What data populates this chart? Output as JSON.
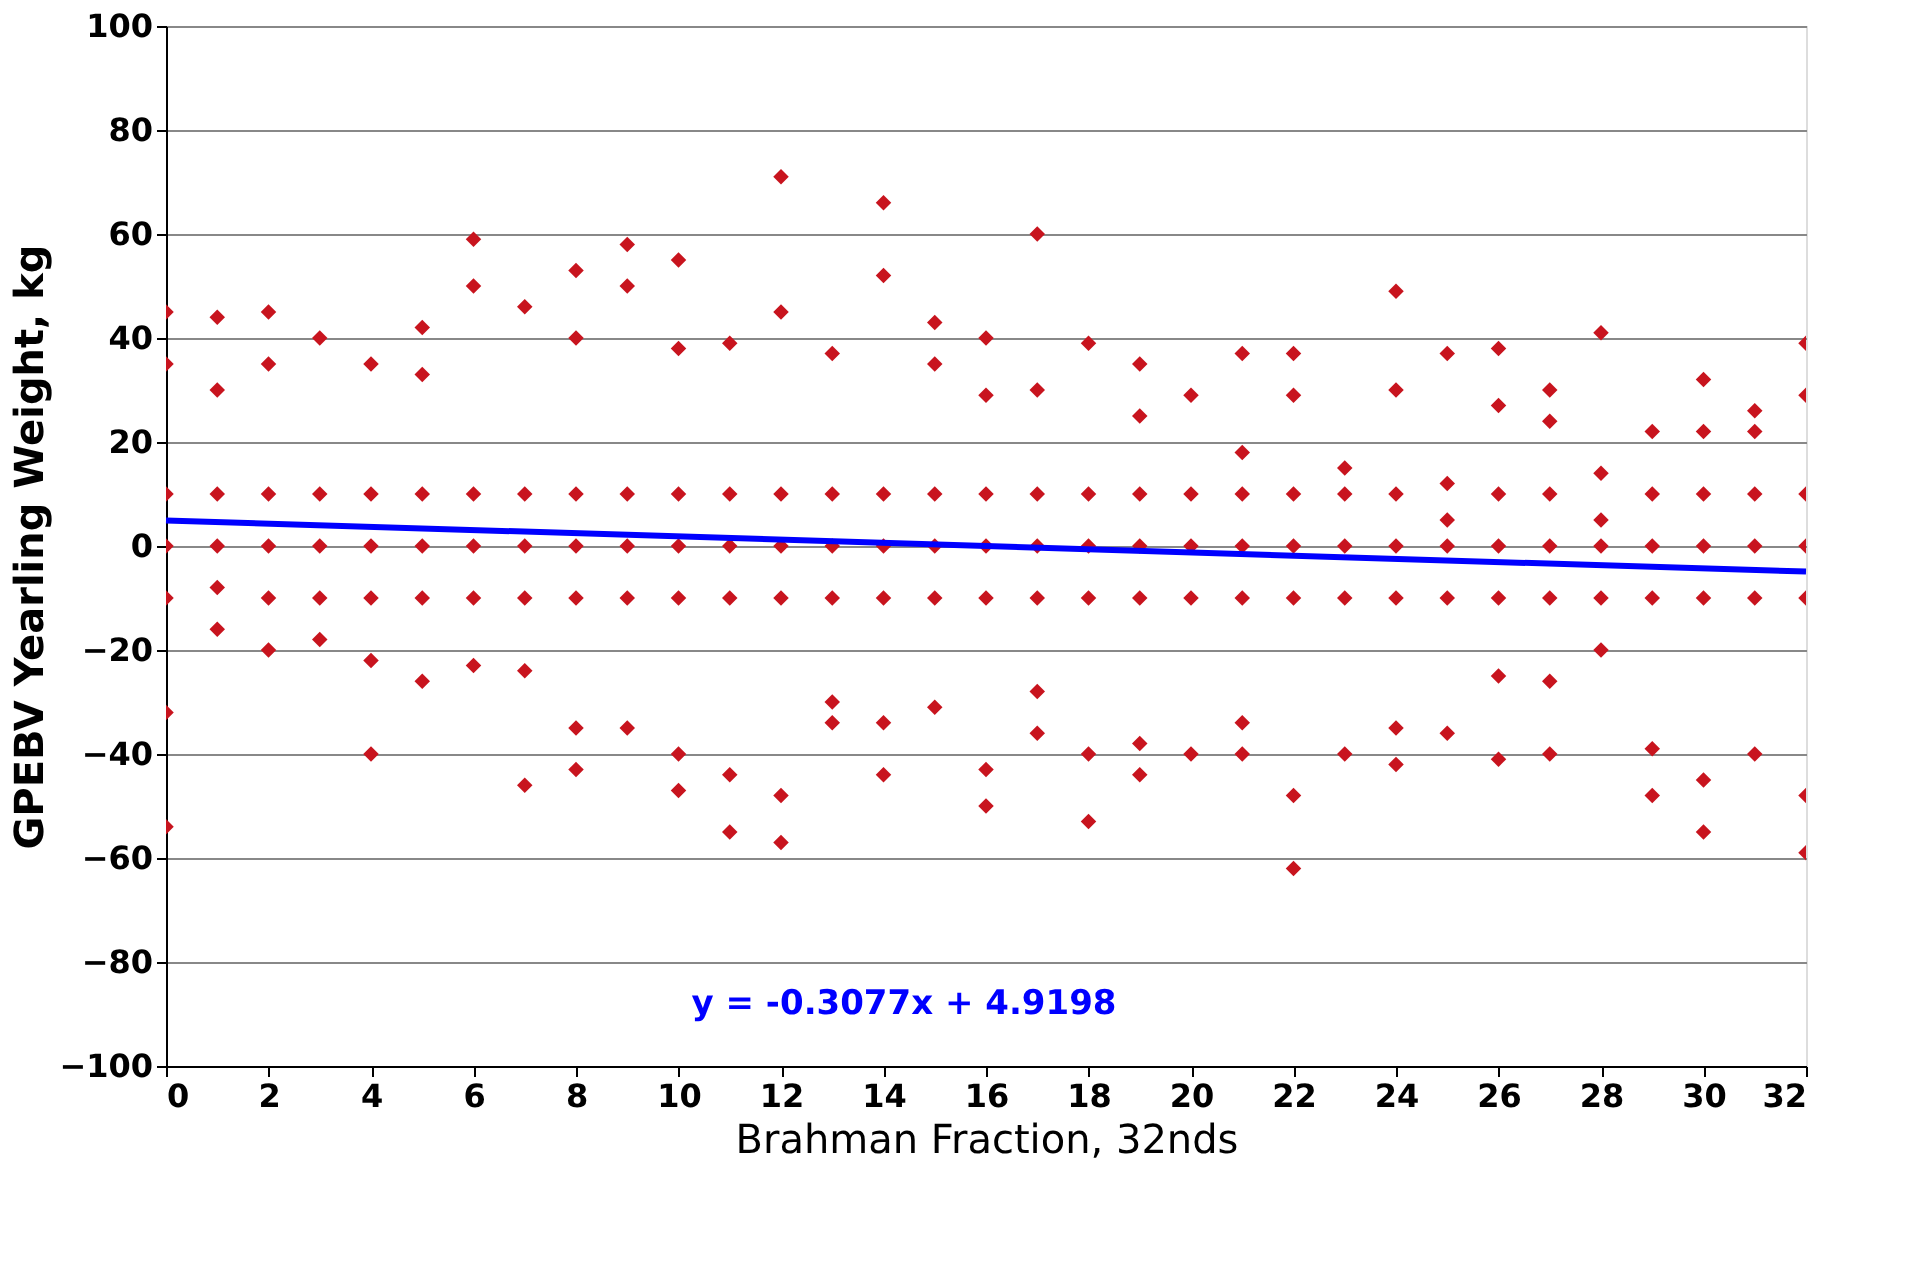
{
  "chart_data": {
    "type": "scatter",
    "xlabel": "Brahman Fraction, 32nds",
    "ylabel": "GPEBV Yearling Weight, kg",
    "xlim": [
      0,
      32
    ],
    "xticks": [
      0,
      2,
      4,
      6,
      8,
      10,
      12,
      14,
      16,
      18,
      20,
      22,
      24,
      26,
      28,
      30,
      32
    ],
    "ylim": [
      -100,
      100
    ],
    "yticks": [
      -100,
      -80,
      -60,
      -40,
      -20,
      0,
      20,
      40,
      60,
      80,
      100
    ],
    "grid": "y",
    "legend": false,
    "marker": "diamond",
    "annotations": [
      "y = -0.3077x + 4.9198"
    ],
    "series": [
      {
        "color": "#c8141e",
        "x": [
          0,
          0,
          0,
          0,
          0,
          0,
          0,
          1,
          1,
          1,
          1,
          1,
          1,
          2,
          2,
          2,
          2,
          2,
          2,
          3,
          3,
          3,
          3,
          3,
          4,
          4,
          4,
          4,
          4,
          4,
          5,
          5,
          5,
          5,
          5,
          5,
          6,
          6,
          6,
          6,
          6,
          6,
          7,
          7,
          7,
          7,
          7,
          7,
          8,
          8,
          8,
          8,
          8,
          8,
          8,
          9,
          9,
          9,
          9,
          9,
          9,
          10,
          10,
          10,
          10,
          10,
          10,
          10,
          11,
          11,
          11,
          11,
          11,
          11,
          12,
          12,
          12,
          12,
          12,
          12,
          12,
          13,
          13,
          13,
          13,
          13,
          13,
          14,
          14,
          14,
          14,
          14,
          14,
          14,
          15,
          15,
          15,
          15,
          15,
          15,
          16,
          16,
          16,
          16,
          16,
          16,
          16,
          17,
          17,
          17,
          17,
          17,
          17,
          17,
          18,
          18,
          18,
          18,
          18,
          18,
          19,
          19,
          19,
          19,
          19,
          19,
          19,
          20,
          20,
          20,
          20,
          20,
          21,
          21,
          21,
          21,
          21,
          21,
          21,
          22,
          22,
          22,
          22,
          22,
          22,
          22,
          23,
          23,
          23,
          23,
          23,
          24,
          24,
          24,
          24,
          24,
          24,
          24,
          25,
          25,
          25,
          25,
          25,
          25,
          26,
          26,
          26,
          26,
          26,
          26,
          26,
          27,
          27,
          27,
          27,
          27,
          27,
          27,
          28,
          28,
          28,
          28,
          28,
          28,
          29,
          29,
          29,
          29,
          29,
          29,
          30,
          30,
          30,
          30,
          30,
          30,
          30,
          31,
          31,
          31,
          31,
          31,
          31,
          32,
          32,
          32,
          32,
          32,
          32,
          32
        ],
        "values": [
          45,
          35,
          10,
          0,
          -10,
          -32,
          -54,
          44,
          30,
          10,
          0,
          -8,
          -16,
          45,
          35,
          10,
          0,
          -10,
          -20,
          40,
          10,
          0,
          -10,
          -18,
          35,
          10,
          0,
          -10,
          -22,
          -40,
          42,
          33,
          10,
          0,
          -10,
          -26,
          59,
          50,
          10,
          0,
          -10,
          -23,
          46,
          10,
          0,
          -10,
          -24,
          -46,
          53,
          40,
          10,
          0,
          -10,
          -35,
          -43,
          58,
          50,
          10,
          0,
          -10,
          -35,
          55,
          38,
          10,
          0,
          -10,
          -40,
          -47,
          39,
          10,
          0,
          -10,
          -44,
          -55,
          71,
          45,
          10,
          0,
          -10,
          -48,
          -57,
          37,
          10,
          0,
          -10,
          -30,
          -34,
          66,
          52,
          10,
          0,
          -10,
          -34,
          -44,
          43,
          35,
          10,
          0,
          -10,
          -31,
          40,
          29,
          10,
          0,
          -10,
          -43,
          -50,
          60,
          30,
          10,
          0,
          -10,
          -28,
          -36,
          39,
          10,
          0,
          -10,
          -40,
          -53,
          35,
          25,
          10,
          0,
          -10,
          -38,
          -44,
          29,
          10,
          0,
          -10,
          -40,
          37,
          18,
          10,
          0,
          -10,
          -34,
          -40,
          37,
          29,
          10,
          0,
          -10,
          -48,
          -62,
          15,
          10,
          0,
          -10,
          -40,
          49,
          30,
          10,
          0,
          -10,
          -35,
          -42,
          37,
          12,
          5,
          0,
          -10,
          -36,
          38,
          27,
          10,
          0,
          -10,
          -25,
          -41,
          30,
          24,
          10,
          0,
          -10,
          -26,
          -40,
          41,
          14,
          5,
          0,
          -10,
          -20,
          22,
          10,
          0,
          -10,
          -39,
          -48,
          32,
          22,
          10,
          0,
          -10,
          -45,
          -55,
          26,
          22,
          10,
          0,
          -10,
          -40,
          39,
          29,
          10,
          0,
          -10,
          -48,
          -59
        ]
      },
      {
        "type": "line",
        "color": "#0000ff",
        "marker": "none",
        "x": [
          0,
          32
        ],
        "values": [
          4.9198,
          -4.9266
        ]
      }
    ]
  }
}
